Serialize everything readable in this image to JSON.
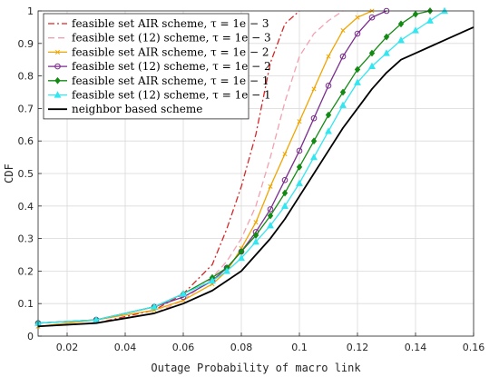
{
  "chart_data": {
    "type": "line",
    "title": "",
    "xlabel": "Outage Probability of macro link",
    "ylabel": "CDF",
    "xlim": [
      0.01,
      0.16
    ],
    "ylim": [
      0,
      1
    ],
    "xticks": [
      0.02,
      0.04,
      0.06,
      0.08,
      0.1,
      0.12,
      0.14,
      0.16
    ],
    "yticks": [
      0,
      0.1,
      0.2,
      0.3,
      0.4,
      0.5,
      0.6,
      0.7,
      0.8,
      0.9,
      1
    ],
    "grid": true,
    "legend_position": "top-left",
    "series": [
      {
        "name": "feasible set AIR scheme, τ = 1e − 3",
        "color": "#d62728",
        "dash": "dashdot",
        "marker": "none",
        "x": [
          0.01,
          0.03,
          0.05,
          0.06,
          0.07,
          0.075,
          0.08,
          0.085,
          0.09,
          0.095,
          0.1
        ],
        "y": [
          0.03,
          0.04,
          0.08,
          0.13,
          0.22,
          0.33,
          0.46,
          0.62,
          0.84,
          0.96,
          1.0
        ]
      },
      {
        "name": "feasible set (12) scheme, τ = 1e − 3",
        "color": "#f4a0b0",
        "dash": "dashed",
        "marker": "none",
        "x": [
          0.01,
          0.03,
          0.05,
          0.06,
          0.07,
          0.075,
          0.08,
          0.085,
          0.09,
          0.095,
          0.1,
          0.105,
          0.11,
          0.115
        ],
        "y": [
          0.03,
          0.04,
          0.07,
          0.11,
          0.18,
          0.23,
          0.3,
          0.4,
          0.55,
          0.72,
          0.86,
          0.93,
          0.97,
          1.0
        ]
      },
      {
        "name": "feasible set AIR scheme, τ = 1e − 2",
        "color": "#f0a500",
        "dash": "solid",
        "marker": "x",
        "x": [
          0.01,
          0.03,
          0.05,
          0.06,
          0.07,
          0.075,
          0.08,
          0.085,
          0.09,
          0.095,
          0.1,
          0.105,
          0.11,
          0.115,
          0.12,
          0.125
        ],
        "y": [
          0.03,
          0.05,
          0.08,
          0.11,
          0.16,
          0.2,
          0.27,
          0.35,
          0.46,
          0.56,
          0.66,
          0.76,
          0.86,
          0.94,
          0.98,
          1.0
        ]
      },
      {
        "name": "feasible set (12) scheme, τ = 1e − 2",
        "color": "#7b2d8e",
        "dash": "solid",
        "marker": "circle",
        "x": [
          0.01,
          0.03,
          0.05,
          0.06,
          0.07,
          0.075,
          0.08,
          0.085,
          0.09,
          0.095,
          0.1,
          0.105,
          0.11,
          0.115,
          0.12,
          0.125,
          0.13
        ],
        "y": [
          0.04,
          0.05,
          0.09,
          0.12,
          0.17,
          0.21,
          0.26,
          0.32,
          0.39,
          0.48,
          0.57,
          0.67,
          0.77,
          0.86,
          0.93,
          0.98,
          1.0
        ]
      },
      {
        "name": "feasible set AIR scheme, τ = 1e − 1",
        "color": "#138a13",
        "dash": "solid",
        "marker": "diamond",
        "x": [
          0.01,
          0.03,
          0.05,
          0.06,
          0.07,
          0.075,
          0.08,
          0.085,
          0.09,
          0.095,
          0.1,
          0.105,
          0.11,
          0.115,
          0.12,
          0.125,
          0.13,
          0.135,
          0.14,
          0.145
        ],
        "y": [
          0.04,
          0.05,
          0.09,
          0.13,
          0.18,
          0.21,
          0.26,
          0.31,
          0.37,
          0.44,
          0.52,
          0.6,
          0.68,
          0.75,
          0.82,
          0.87,
          0.92,
          0.96,
          0.99,
          1.0
        ]
      },
      {
        "name": "feasible set (12) scheme, τ = 1e − 1",
        "color": "#33e6f0",
        "dash": "solid",
        "marker": "triangle",
        "x": [
          0.01,
          0.03,
          0.05,
          0.06,
          0.07,
          0.075,
          0.08,
          0.085,
          0.09,
          0.095,
          0.1,
          0.105,
          0.11,
          0.115,
          0.12,
          0.125,
          0.13,
          0.135,
          0.14,
          0.145,
          0.15
        ],
        "y": [
          0.04,
          0.05,
          0.09,
          0.13,
          0.17,
          0.2,
          0.24,
          0.29,
          0.34,
          0.4,
          0.47,
          0.55,
          0.63,
          0.71,
          0.78,
          0.83,
          0.87,
          0.91,
          0.94,
          0.97,
          1.0
        ]
      },
      {
        "name": "neighbor based scheme",
        "color": "#000000",
        "dash": "solid",
        "marker": "none",
        "width": 1.8,
        "x": [
          0.01,
          0.03,
          0.05,
          0.06,
          0.07,
          0.075,
          0.08,
          0.085,
          0.09,
          0.095,
          0.1,
          0.105,
          0.11,
          0.115,
          0.12,
          0.125,
          0.13,
          0.135,
          0.14,
          0.145,
          0.15,
          0.155,
          0.16
        ],
        "y": [
          0.03,
          0.04,
          0.07,
          0.1,
          0.14,
          0.17,
          0.2,
          0.25,
          0.3,
          0.36,
          0.43,
          0.5,
          0.57,
          0.64,
          0.7,
          0.76,
          0.81,
          0.85,
          0.87,
          0.89,
          0.91,
          0.93,
          0.95
        ]
      }
    ]
  }
}
